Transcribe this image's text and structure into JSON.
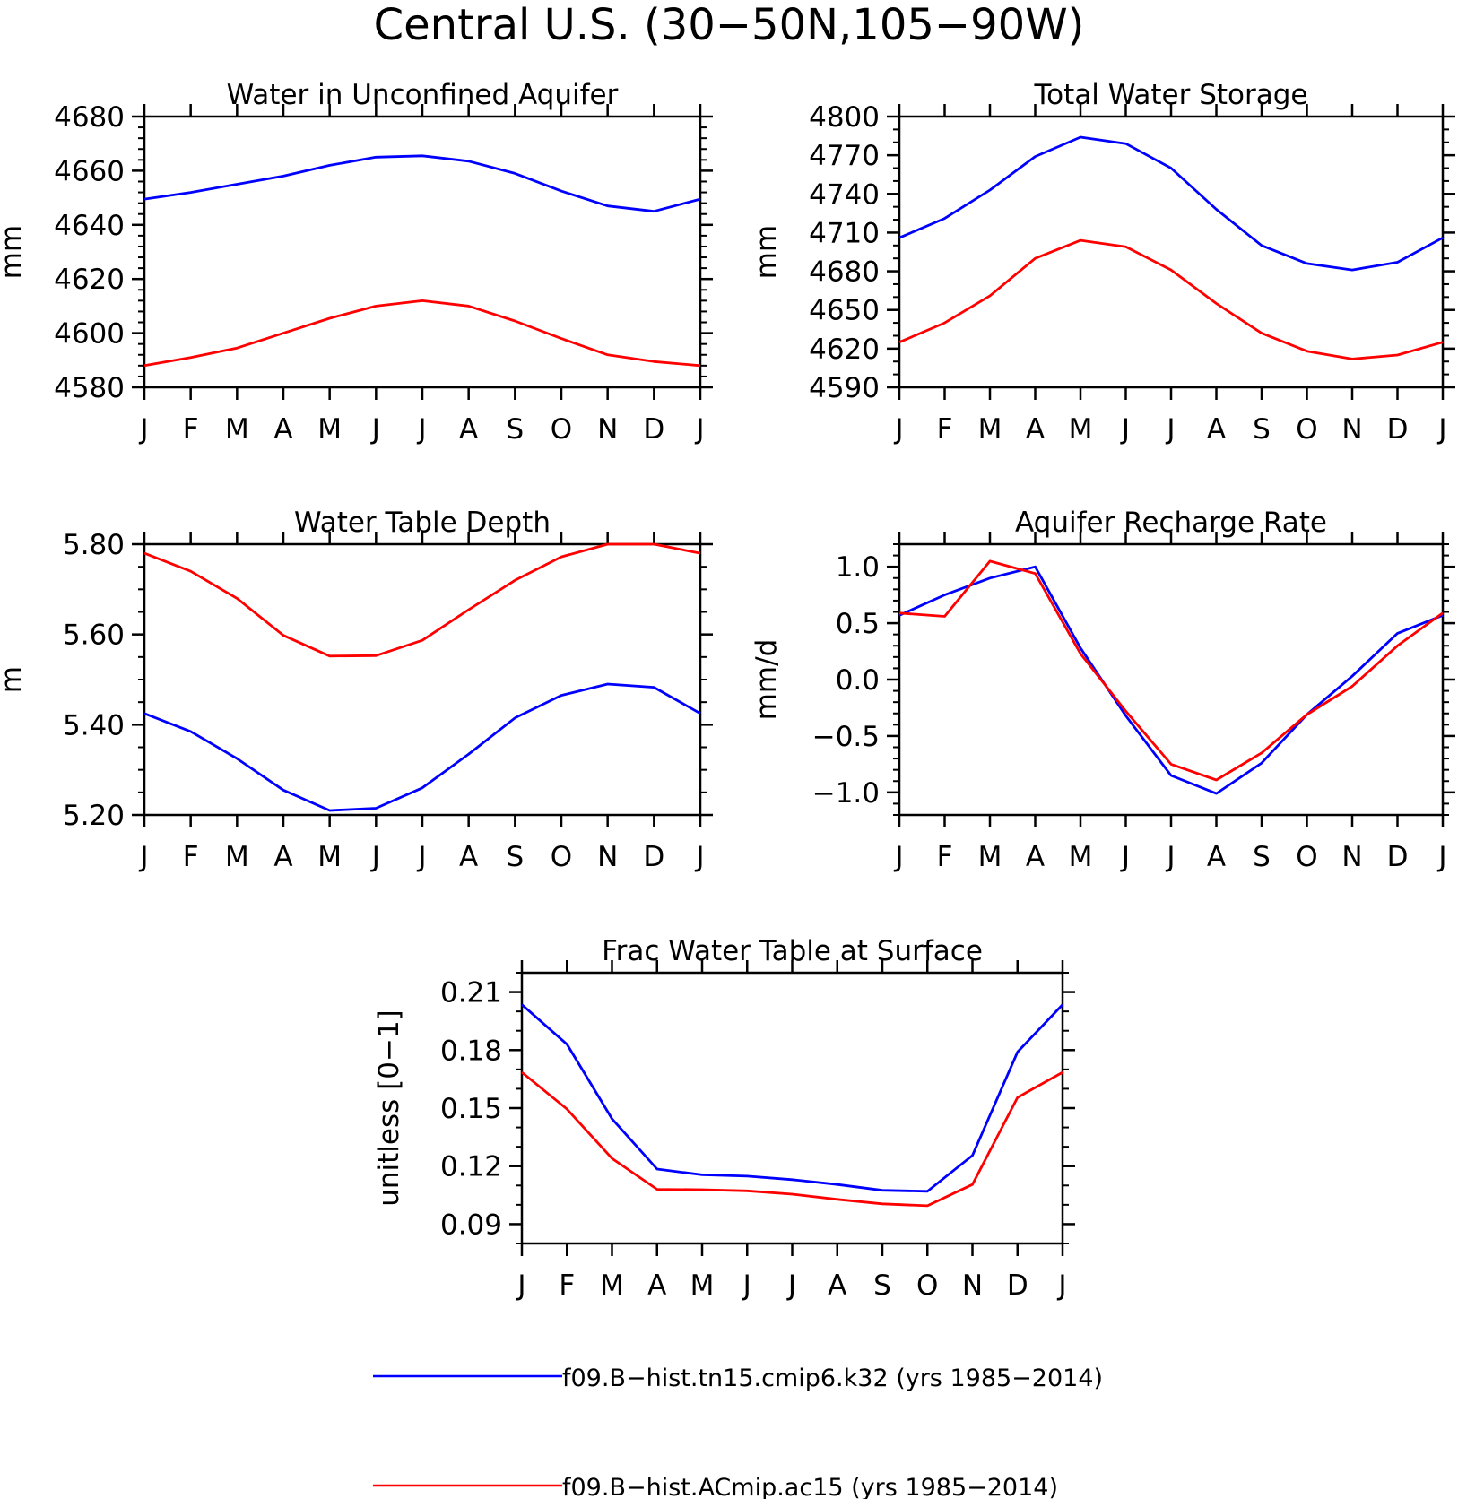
{
  "figure_title": "Central U.S. (30−50N,105−90W)",
  "month_labels": [
    "J",
    "F",
    "M",
    "A",
    "M",
    "J",
    "J",
    "A",
    "S",
    "O",
    "N",
    "D",
    "J"
  ],
  "colors": {
    "run1": "#0000ff",
    "run2": "#ff0000"
  },
  "legend": [
    {
      "name": "f09.B−hist.tn15.cmip6.k32 (yrs 1985−2014)",
      "color": "#0000ff"
    },
    {
      "name": "f09.B−hist.ACmip.ac15 (yrs 1985−2014)",
      "color": "#ff0000"
    }
  ],
  "chart_data": [
    {
      "type": "line",
      "title": "Water in Unconfined Aquifer",
      "ylabel": "mm",
      "xlabel": "",
      "ylim": [
        4580,
        4680
      ],
      "yticks": [
        4580,
        4600,
        4620,
        4640,
        4660,
        4680
      ],
      "yminor": 5,
      "ytick_labels": [
        "4580",
        "4600",
        "4620",
        "4640",
        "4660",
        "4680"
      ],
      "categories": [
        "J",
        "F",
        "M",
        "A",
        "M",
        "J",
        "J",
        "A",
        "S",
        "O",
        "N",
        "D",
        "J"
      ],
      "series": [
        {
          "name": "f09.B−hist.tn15.cmip6.k32 (yrs 1985−2014)",
          "color": "#0000ff",
          "values": [
            4649.5,
            4652,
            4655,
            4658,
            4662,
            4665,
            4665.5,
            4663.5,
            4659,
            4652.5,
            4647,
            4645,
            4649.5
          ]
        },
        {
          "name": "f09.B−hist.ACmip.ac15 (yrs 1985−2014)",
          "color": "#ff0000",
          "values": [
            4588,
            4591,
            4594.5,
            4600,
            4605.5,
            4610,
            4612,
            4610,
            4604.5,
            4598,
            4592,
            4589.5,
            4588
          ]
        }
      ]
    },
    {
      "type": "line",
      "title": "Total Water Storage",
      "ylabel": "mm",
      "xlabel": "",
      "ylim": [
        4590,
        4800
      ],
      "yticks": [
        4590,
        4620,
        4650,
        4680,
        4710,
        4740,
        4770,
        4800
      ],
      "yminor": 3,
      "ytick_labels": [
        "4590",
        "4620",
        "4650",
        "4680",
        "4710",
        "4740",
        "4770",
        "4800"
      ],
      "categories": [
        "J",
        "F",
        "M",
        "A",
        "M",
        "J",
        "J",
        "A",
        "S",
        "O",
        "N",
        "D",
        "J"
      ],
      "series": [
        {
          "name": "f09.B−hist.tn15.cmip6.k32 (yrs 1985−2014)",
          "color": "#0000ff",
          "values": [
            4706,
            4721,
            4743,
            4769,
            4784,
            4779,
            4760,
            4728,
            4700,
            4686,
            4681,
            4687,
            4706
          ]
        },
        {
          "name": "f09.B−hist.ACmip.ac15 (yrs 1985−2014)",
          "color": "#ff0000",
          "values": [
            4625,
            4640,
            4661,
            4690,
            4704,
            4699,
            4681,
            4655,
            4632,
            4618,
            4612,
            4615,
            4625
          ]
        }
      ]
    },
    {
      "type": "line",
      "title": "Water Table Depth",
      "ylabel": "m",
      "xlabel": "",
      "ylim": [
        5.2,
        5.8
      ],
      "yticks": [
        5.2,
        5.4,
        5.6,
        5.8
      ],
      "yminor": 4,
      "ytick_labels": [
        "5.20",
        "5.40",
        "5.60",
        "5.80"
      ],
      "categories": [
        "J",
        "F",
        "M",
        "A",
        "M",
        "J",
        "J",
        "A",
        "S",
        "O",
        "N",
        "D",
        "J"
      ],
      "series": [
        {
          "name": "f09.B−hist.tn15.cmip6.k32 (yrs 1985−2014)",
          "color": "#0000ff",
          "values": [
            5.425,
            5.385,
            5.325,
            5.255,
            5.21,
            5.215,
            5.26,
            5.335,
            5.415,
            5.465,
            5.49,
            5.483,
            5.425
          ]
        },
        {
          "name": "f09.B−hist.ACmip.ac15 (yrs 1985−2014)",
          "color": "#ff0000",
          "values": [
            5.78,
            5.74,
            5.68,
            5.598,
            5.552,
            5.553,
            5.587,
            5.655,
            5.72,
            5.772,
            5.8,
            5.8,
            5.78
          ]
        }
      ]
    },
    {
      "type": "line",
      "title": "Aquifer Recharge Rate",
      "ylabel": "mm/d",
      "xlabel": "",
      "ylim": [
        -1.2,
        1.2
      ],
      "yticks": [
        -1.0,
        -0.5,
        0.0,
        0.5,
        1.0
      ],
      "yminor": 5,
      "ytick_labels": [
        "−1.0",
        "−0.5",
        "0.0",
        "0.5",
        "1.0"
      ],
      "categories": [
        "J",
        "F",
        "M",
        "A",
        "M",
        "J",
        "J",
        "A",
        "S",
        "O",
        "N",
        "D",
        "J"
      ],
      "series": [
        {
          "name": "f09.B−hist.tn15.cmip6.k32 (yrs 1985−2014)",
          "color": "#0000ff",
          "values": [
            0.57,
            0.75,
            0.9,
            1.0,
            0.28,
            -0.32,
            -0.85,
            -1.01,
            -0.74,
            -0.31,
            0.03,
            0.41,
            0.57
          ]
        },
        {
          "name": "f09.B−hist.ACmip.ac15 (yrs 1985−2014)",
          "color": "#ff0000",
          "values": [
            0.59,
            0.56,
            1.05,
            0.94,
            0.23,
            -0.28,
            -0.75,
            -0.89,
            -0.65,
            -0.31,
            -0.06,
            0.3,
            0.59
          ]
        }
      ]
    },
    {
      "type": "line",
      "title": "Frac Water Table at Surface",
      "ylabel": "unitless [0−1]",
      "xlabel": "",
      "ylim": [
        0.08,
        0.22
      ],
      "yticks": [
        0.09,
        0.12,
        0.15,
        0.18,
        0.21
      ],
      "yminor": 3,
      "ytick_labels": [
        "0.09",
        "0.12",
        "0.15",
        "0.18",
        "0.21"
      ],
      "categories": [
        "J",
        "F",
        "M",
        "A",
        "M",
        "J",
        "J",
        "A",
        "S",
        "O",
        "N",
        "D",
        "J"
      ],
      "series": [
        {
          "name": "f09.B−hist.tn15.cmip6.k32 (yrs 1985−2014)",
          "color": "#0000ff",
          "values": [
            0.2035,
            0.183,
            0.1445,
            0.1185,
            0.1155,
            0.1148,
            0.113,
            0.1105,
            0.1075,
            0.107,
            0.1255,
            0.179,
            0.2035
          ]
        },
        {
          "name": "f09.B−hist.ACmip.ac15 (yrs 1985−2014)",
          "color": "#ff0000",
          "values": [
            0.1685,
            0.1495,
            0.124,
            0.108,
            0.1078,
            0.1072,
            0.1055,
            0.1028,
            0.1005,
            0.0995,
            0.1105,
            0.1555,
            0.1685
          ]
        }
      ]
    }
  ]
}
